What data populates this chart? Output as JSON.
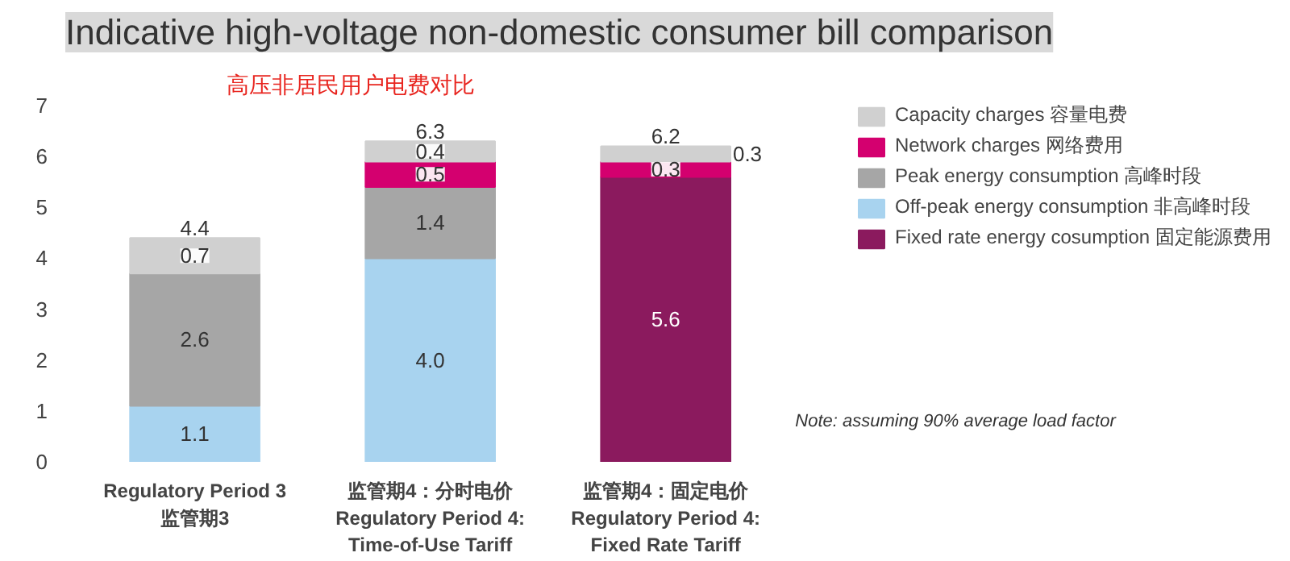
{
  "chart_data": {
    "type": "bar",
    "stacked": true,
    "title": "Indicative high-voltage non-domestic consumer bill comparison",
    "subtitle": "高压非居民用户电费对比",
    "categories": [
      "Regulatory Period 3\n监管期3",
      "监管期4：分时电价\nRegulatory Period 4:\nTime-of-Use Tariff",
      "监管期4：固定电价\nRegulatory Period 4:\nFixed Rate Tariff"
    ],
    "series": [
      {
        "name": "Fixed rate energy cosumption 固定能源费用",
        "color": "#8b1a5e",
        "values": [
          null,
          null,
          5.6
        ],
        "value_labels": [
          null,
          null,
          "5.6"
        ]
      },
      {
        "name": "Off-peak energy consumption 非高峰时段",
        "color": "#a8d3ef",
        "values": [
          1.1,
          4.0,
          null
        ],
        "value_labels": [
          "1.1",
          "4.0",
          null
        ]
      },
      {
        "name": "Peak energy consumption 高峰时段",
        "color": "#a6a6a6",
        "values": [
          2.6,
          1.4,
          null
        ],
        "value_labels": [
          "2.6",
          "1.4",
          null
        ]
      },
      {
        "name": "Network charges 网络费用",
        "color": "#d4006f",
        "values": [
          null,
          0.5,
          0.3
        ],
        "value_labels": [
          null,
          "0.5",
          "0.3"
        ]
      },
      {
        "name": "Capacity charges 容量电费",
        "color": "#d0d0d0",
        "values": [
          0.7,
          0.4,
          0.3
        ],
        "value_labels": [
          "0.7",
          "0.4",
          "0.3"
        ]
      }
    ],
    "totals": [
      "4.4",
      "6.3",
      "6.2"
    ],
    "ylim": [
      0,
      7
    ],
    "yticks": [
      0,
      1,
      2,
      3,
      4,
      5,
      6,
      7
    ],
    "legend": "right",
    "annotations": [
      "Note: assuming 90% average load factor"
    ]
  }
}
